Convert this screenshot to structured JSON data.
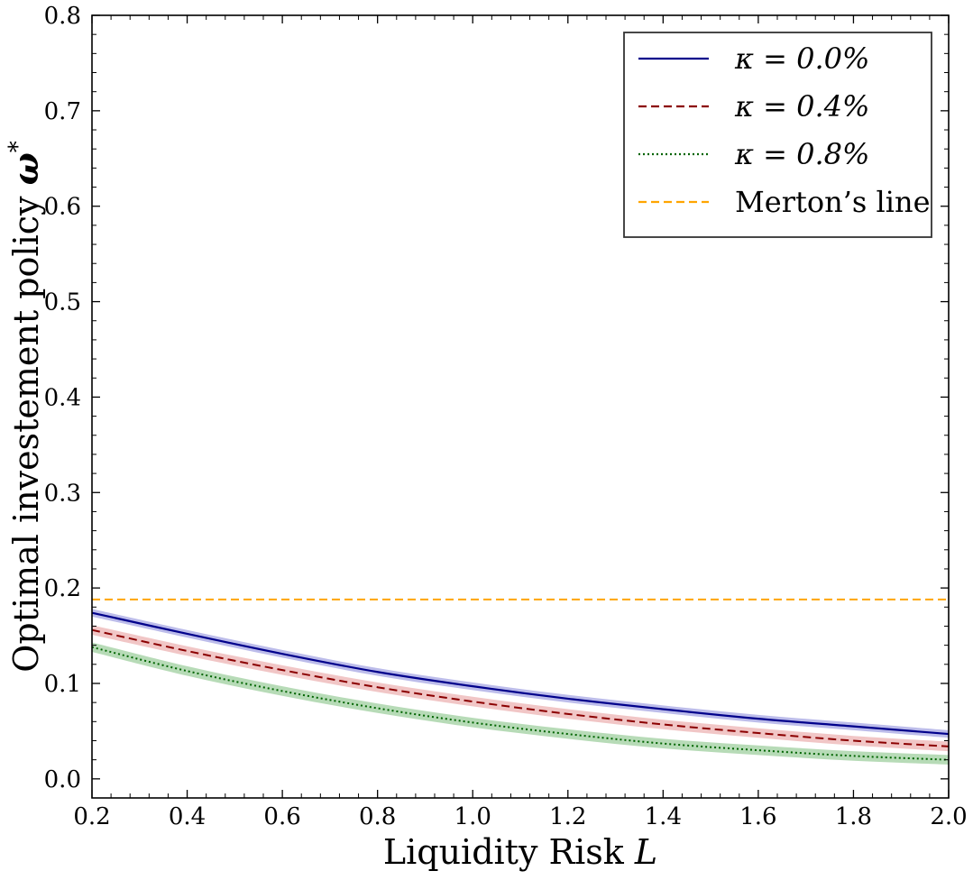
{
  "chart_data": {
    "type": "line",
    "xlabel": "Liquidity Risk",
    "xlabel_var": "L",
    "ylabel": "Optimal investement policy",
    "ylabel_var": "ω",
    "ylabel_sup": "*",
    "xlim": [
      0.2,
      2.0
    ],
    "ylim": [
      -0.02,
      0.8
    ],
    "xticks": [
      0.2,
      0.4,
      0.6,
      0.8,
      1.0,
      1.2,
      1.4,
      1.6,
      1.8,
      2.0
    ],
    "xtick_labels": [
      "0.2",
      "0.4",
      "0.6",
      "0.8",
      "1.0",
      "1.2",
      "1.4",
      "1.6",
      "1.8",
      "2.0"
    ],
    "yticks": [
      0.0,
      0.1,
      0.2,
      0.3,
      0.4,
      0.5,
      0.6,
      0.7,
      0.8
    ],
    "ytick_labels": [
      "0.0",
      "0.1",
      "0.2",
      "0.3",
      "0.4",
      "0.5",
      "0.6",
      "0.7",
      "0.8"
    ],
    "legend_position": "top-right",
    "series": [
      {
        "name": "κ = 0.0%",
        "color": "#00008b",
        "style": "solid",
        "band_color": "#6a6ad0",
        "x": [
          0.2,
          0.4,
          0.6,
          0.8,
          1.0,
          1.2,
          1.4,
          1.6,
          1.8,
          2.0
        ],
        "values": [
          0.174,
          0.152,
          0.131,
          0.112,
          0.097,
          0.084,
          0.073,
          0.063,
          0.055,
          0.047
        ],
        "band": 0.004
      },
      {
        "name": "κ = 0.4%",
        "color": "#8b0000",
        "style": "dashed",
        "band_color": "#e08080",
        "x": [
          0.2,
          0.4,
          0.6,
          0.8,
          1.0,
          1.2,
          1.4,
          1.6,
          1.8,
          2.0
        ],
        "values": [
          0.156,
          0.134,
          0.114,
          0.096,
          0.081,
          0.068,
          0.057,
          0.048,
          0.04,
          0.034
        ],
        "band": 0.005
      },
      {
        "name": "κ = 0.8%",
        "color": "#006400",
        "style": "dotted",
        "band_color": "#60b060",
        "x": [
          0.2,
          0.4,
          0.6,
          0.8,
          1.0,
          1.2,
          1.4,
          1.6,
          1.8,
          2.0
        ],
        "values": [
          0.138,
          0.113,
          0.092,
          0.074,
          0.059,
          0.047,
          0.037,
          0.03,
          0.024,
          0.02
        ],
        "band": 0.005
      },
      {
        "name": "Merton’s line",
        "color": "#ffa500",
        "style": "dashed",
        "x": [
          0.2,
          2.0
        ],
        "values": [
          0.188,
          0.188
        ]
      }
    ]
  }
}
